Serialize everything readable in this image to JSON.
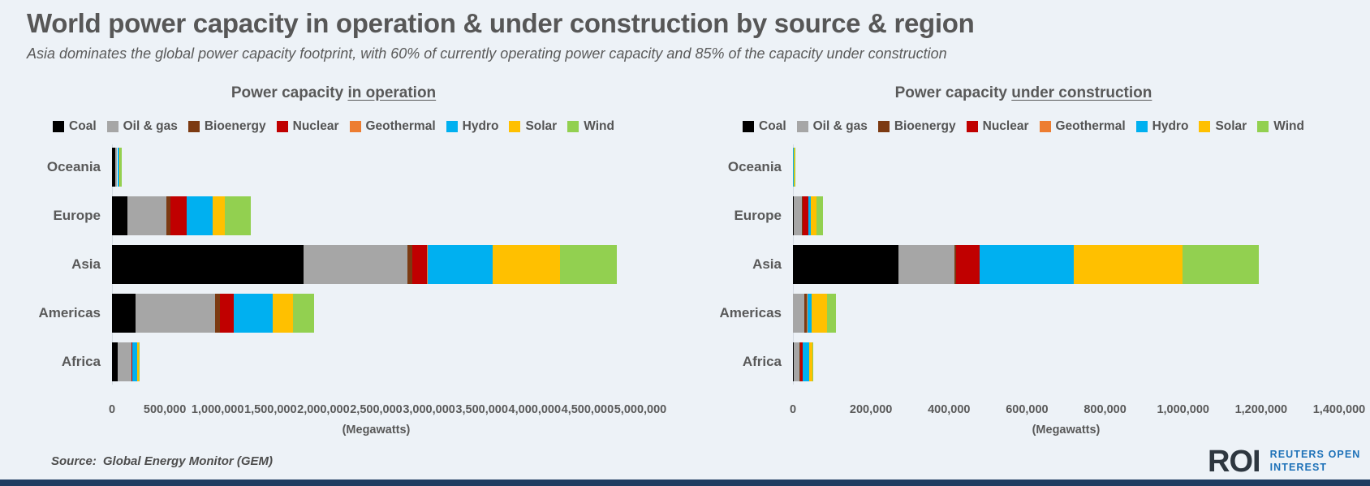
{
  "header": {
    "title": "World power capacity in operation & under construction by source & region",
    "subtitle": "Asia dominates the global power capacity footprint, with 60% of currently operating power capacity and 85% of the capacity under construction"
  },
  "chart_data": [
    {
      "type": "bar",
      "orientation": "horizontal-stacked",
      "title_plain": "Power capacity ",
      "title_underlined": "in operation",
      "unit_label": "(Megawatts)",
      "categories": [
        "Oceania",
        "Europe",
        "Asia",
        "Americas",
        "Africa"
      ],
      "series": [
        {
          "name": "Coal",
          "color": "#000000",
          "values": [
            30000,
            145000,
            1815000,
            220000,
            55000
          ]
        },
        {
          "name": "Oil & gas",
          "color": "#a6a6a6",
          "values": [
            20000,
            370000,
            980000,
            755000,
            130000
          ]
        },
        {
          "name": "Bioenergy",
          "color": "#7c3a12",
          "values": [
            2000,
            38000,
            50000,
            45000,
            2000
          ]
        },
        {
          "name": "Nuclear",
          "color": "#c00000",
          "values": [
            0,
            155000,
            135000,
            130000,
            2000
          ]
        },
        {
          "name": "Geothermal",
          "color": "#ed7d31",
          "values": [
            1000,
            2000,
            5000,
            4000,
            6000
          ]
        },
        {
          "name": "Hydro",
          "color": "#00b0f0",
          "values": [
            15000,
            240000,
            620000,
            365000,
            40000
          ]
        },
        {
          "name": "Solar",
          "color": "#ffc000",
          "values": [
            12000,
            120000,
            635000,
            195000,
            15000
          ]
        },
        {
          "name": "Wind",
          "color": "#92d050",
          "values": [
            15000,
            240000,
            540000,
            200000,
            10000
          ]
        }
      ],
      "xlim": [
        0,
        5000000
      ],
      "xticks": [
        "0",
        "500,000",
        "1,000,000",
        "1,500,000",
        "2,000,000",
        "2,500,000",
        "3,000,000",
        "3,500,000",
        "4,000,000",
        "4,500,000",
        "5,000,000"
      ],
      "legend_position": "top",
      "grid": false
    },
    {
      "type": "bar",
      "orientation": "horizontal-stacked",
      "title_plain": "Power capacity ",
      "title_underlined": "under construction",
      "unit_label": "(Megawatts)",
      "categories": [
        "Oceania",
        "Europe",
        "Asia",
        "Americas",
        "Africa"
      ],
      "series": [
        {
          "name": "Coal",
          "color": "#000000",
          "values": [
            0,
            2000,
            270000,
            1000,
            2000
          ]
        },
        {
          "name": "Oil & gas",
          "color": "#a6a6a6",
          "values": [
            1000,
            20000,
            145000,
            28000,
            15000
          ]
        },
        {
          "name": "Bioenergy",
          "color": "#7c3a12",
          "values": [
            0,
            2000,
            3000,
            6000,
            1000
          ]
        },
        {
          "name": "Nuclear",
          "color": "#c00000",
          "values": [
            0,
            16000,
            60000,
            1000,
            7000
          ]
        },
        {
          "name": "Geothermal",
          "color": "#ed7d31",
          "values": [
            0,
            0,
            1000,
            1000,
            1000
          ]
        },
        {
          "name": "Hydro",
          "color": "#00b0f0",
          "values": [
            2000,
            6000,
            240000,
            10000,
            16000
          ]
        },
        {
          "name": "Solar",
          "color": "#ffc000",
          "values": [
            1000,
            15000,
            280000,
            41000,
            7000
          ]
        },
        {
          "name": "Wind",
          "color": "#92d050",
          "values": [
            2000,
            16000,
            195000,
            22000,
            4000
          ]
        }
      ],
      "xlim": [
        0,
        1400000
      ],
      "xticks": [
        "0",
        "200,000",
        "400,000",
        "600,000",
        "800,000",
        "1,000,000",
        "1,200,000",
        "1,400,000"
      ],
      "legend_position": "top",
      "grid": false
    }
  ],
  "footer": {
    "source_label": "Source:",
    "source_value": "Global Energy Monitor (GEM)",
    "logo_text": "ROI",
    "logo_sub_line1": "REUTERS OPEN",
    "logo_sub_line2": "INTEREST"
  }
}
